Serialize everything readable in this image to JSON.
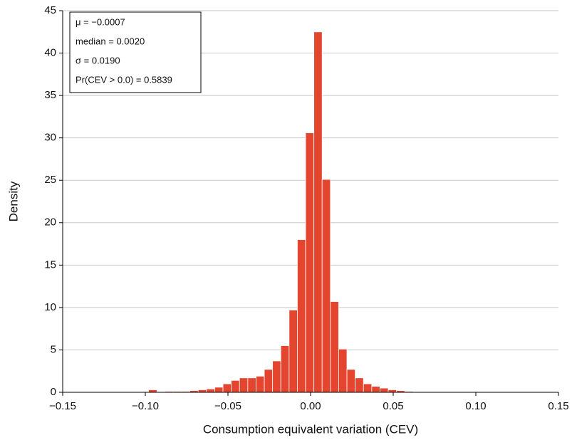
{
  "chart_data": {
    "type": "histogram",
    "xlabel": "Consumption equivalent variation (CEV)",
    "ylabel": "Density",
    "annotations": [
      "μ = −0.0007",
      "median = 0.0020",
      "σ = 0.0190",
      "Pr(CEV > 0.0) = 0.5839"
    ],
    "bins": [
      -0.098,
      -0.093,
      -0.088,
      -0.083,
      -0.078,
      -0.073,
      -0.068,
      -0.063,
      -0.058,
      -0.053,
      -0.048,
      -0.043,
      -0.038,
      -0.033,
      -0.028,
      -0.023,
      -0.018,
      -0.013,
      -0.008,
      -0.003,
      0.002,
      0.007,
      0.012,
      0.017,
      0.022,
      0.027,
      0.032,
      0.037,
      0.042,
      0.047,
      0.052,
      0.057,
      0.062,
      0.067,
      0.072
    ],
    "values": [
      0.3,
      0.05,
      0.1,
      0.1,
      0.1,
      0.2,
      0.3,
      0.4,
      0.6,
      1.0,
      1.4,
      1.7,
      1.7,
      1.9,
      2.7,
      3.7,
      5.5,
      9.7,
      18,
      30.6,
      42.5,
      25.1,
      10.7,
      5.1,
      2.7,
      1.7,
      1.0,
      0.7,
      0.5,
      0.3,
      0.2,
      0.1,
      0.05,
      0.03
    ],
    "color": "#e3452f",
    "xlim": [
      -0.15,
      0.15
    ],
    "xticks": [
      {
        "value": -0.15,
        "label": "−0.15"
      },
      {
        "value": -0.1,
        "label": "−0.10"
      },
      {
        "value": -0.05,
        "label": "−0.05"
      },
      {
        "value": 0,
        "label": "0.00"
      },
      {
        "value": 0.05,
        "label": "0.05"
      },
      {
        "value": 0.1,
        "label": "0.10"
      },
      {
        "value": 0.15,
        "label": "0.15"
      }
    ],
    "ylim": [
      0,
      45
    ],
    "yticks": [
      0,
      5,
      10,
      15,
      20,
      25,
      30,
      35,
      40,
      45
    ],
    "grid": true
  }
}
